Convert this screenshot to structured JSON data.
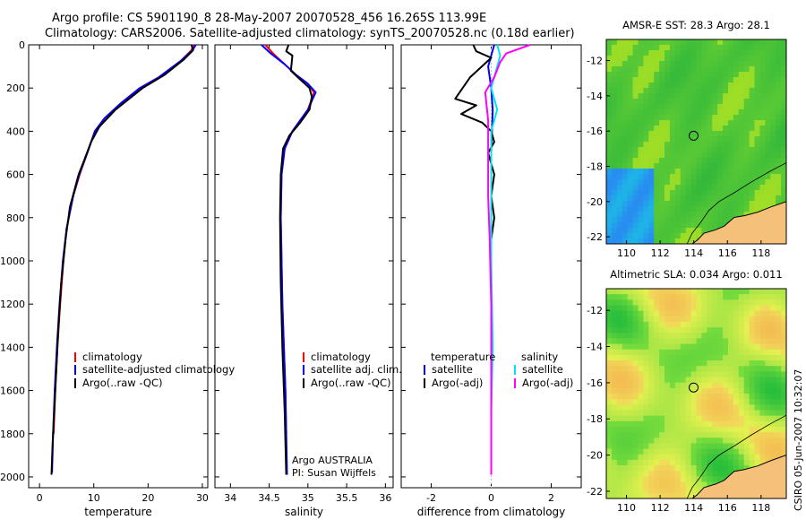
{
  "title": {
    "line1": "Argo profile: CS 5901190_8 28-May-2007 20070528_456 16.265S 113.99E",
    "line2": "Climatology: CARS2006. Satellite-adjusted climatology: synTS_20070528.nc (0.18d earlier)"
  },
  "colors": {
    "climatology": "#ff0000",
    "satellite": "#0000ff",
    "argo": "#000000",
    "temp_diff": "#000000",
    "sal_sat": "#00e5ee",
    "sal_argo": "#ff00ff",
    "land": "#f5c07a"
  },
  "chart_data": [
    {
      "type": "line",
      "xlabel": "temperature",
      "ylabel": "",
      "xlim": [
        -2,
        31
      ],
      "ylim": [
        2050,
        0
      ],
      "xticks": [
        "0",
        "10",
        "20",
        "30"
      ],
      "xtick_values": [
        0,
        10,
        20,
        30
      ],
      "yticks": [
        "0",
        "200",
        "400",
        "600",
        "800",
        "1000",
        "1200",
        "1400",
        "1600",
        "1800",
        "2000"
      ],
      "ytick_values": [
        0,
        200,
        400,
        600,
        800,
        1000,
        1200,
        1400,
        1600,
        1800,
        2000
      ],
      "legend_labels": [
        "climatology",
        "satellite-adjusted climatology",
        "Argo(..raw -QC)"
      ],
      "series": [
        {
          "name": "climatology",
          "color": "climatology",
          "x": [
            28.4,
            28.0,
            26.0,
            22.0,
            18.5,
            15.0,
            12.0,
            10.2,
            8.8,
            7.4,
            6.2,
            5.0,
            4.4,
            3.8,
            3.3,
            2.9,
            2.6
          ],
          "y": [
            0,
            25,
            75,
            150,
            200,
            270,
            340,
            400,
            500,
            600,
            700,
            850,
            1000,
            1200,
            1400,
            1600,
            1800
          ]
        },
        {
          "name": "satellite-adjusted climatology",
          "color": "satellite",
          "x": [
            28.8,
            28.2,
            26.0,
            22.0,
            18.5,
            15.0,
            12.0,
            10.2,
            8.8,
            7.3,
            6.2,
            5.0,
            4.3,
            3.7,
            3.2,
            2.8,
            2.5,
            2.3
          ],
          "y": [
            0,
            25,
            75,
            150,
            200,
            270,
            340,
            400,
            500,
            600,
            700,
            850,
            1000,
            1200,
            1400,
            1600,
            1800,
            1980
          ]
        },
        {
          "name": "Argo(..raw -QC)",
          "color": "argo",
          "x": [
            28.0,
            28.3,
            26.5,
            23.0,
            19.0,
            16.0,
            14.0,
            11.0,
            9.5,
            8.3,
            7.2,
            5.6,
            4.8,
            4.0,
            3.5,
            3.1,
            2.8,
            2.6,
            2.4,
            2.2
          ],
          "y": [
            0,
            25,
            70,
            140,
            200,
            260,
            300,
            380,
            450,
            530,
            600,
            750,
            900,
            1100,
            1300,
            1500,
            1650,
            1750,
            1850,
            1990
          ]
        }
      ]
    },
    {
      "type": "line",
      "xlabel": "salinity",
      "xlim": [
        33.8,
        36.1
      ],
      "ylim": [
        2050,
        0
      ],
      "xticks": [
        "34",
        "34.5",
        "35",
        "35.5",
        "36"
      ],
      "xtick_values": [
        34,
        34.5,
        35,
        35.5,
        36
      ],
      "legend_labels": [
        "climatology",
        "satellite adj. clim.",
        "Argo(..raw -QC)"
      ],
      "annotation": [
        "Argo AUSTRALIA",
        "PI: Susan Wijffels"
      ],
      "series": [
        {
          "name": "climatology",
          "color": "climatology",
          "x": [
            34.45,
            34.55,
            34.7,
            34.85,
            35.0,
            35.08,
            35.0,
            34.8,
            34.7,
            34.66,
            34.65,
            34.66,
            34.67,
            34.69,
            34.71,
            34.72
          ],
          "y": [
            0,
            40,
            90,
            140,
            180,
            220,
            300,
            400,
            480,
            600,
            800,
            1000,
            1200,
            1400,
            1600,
            1800
          ]
        },
        {
          "name": "satellite adj. clim.",
          "color": "satellite",
          "x": [
            34.4,
            34.52,
            34.7,
            34.85,
            35.0,
            35.1,
            35.0,
            34.8,
            34.7,
            34.66,
            34.65,
            34.66,
            34.67,
            34.69,
            34.71,
            34.72,
            34.73
          ],
          "y": [
            0,
            40,
            90,
            140,
            180,
            220,
            300,
            400,
            480,
            600,
            800,
            1000,
            1200,
            1400,
            1600,
            1800,
            1990
          ]
        },
        {
          "name": "Argo(..raw -QC)",
          "color": "argo",
          "x": [
            34.75,
            34.72,
            34.8,
            34.78,
            34.9,
            35.02,
            35.05,
            35.02,
            34.9,
            34.76,
            34.68,
            34.65,
            34.64,
            34.65,
            34.67,
            34.7,
            34.72
          ],
          "y": [
            0,
            30,
            50,
            120,
            160,
            200,
            240,
            300,
            360,
            420,
            480,
            600,
            800,
            1100,
            1400,
            1700,
            1990
          ]
        }
      ]
    },
    {
      "type": "line",
      "xlabel": "difference from climatology",
      "xlim": [
        -3.0,
        3.0
      ],
      "ylim": [
        2050,
        0
      ],
      "xticks": [
        "-2",
        "0",
        "2"
      ],
      "xtick_values": [
        -2,
        0,
        2
      ],
      "legend_labels": [
        "temperature",
        "satellite",
        "Argo(-adj)",
        "salinity",
        "satellite",
        "Argo(-adj)"
      ],
      "series": [
        {
          "name": "temperature satellite",
          "color": "satellite",
          "x": [
            0.1,
            0.0,
            -0.1,
            0.0,
            0.05,
            0.0,
            0.0,
            0.0,
            0.0
          ],
          "y": [
            0,
            50,
            100,
            200,
            300,
            500,
            800,
            1200,
            1990
          ]
        },
        {
          "name": "temperature Argo(-adj)",
          "color": "temp_diff",
          "x": [
            -0.6,
            -0.5,
            0.0,
            -0.7,
            -1.2,
            -0.5,
            -1.0,
            -0.3,
            0.0,
            0.1,
            -0.1,
            0.1,
            0.0,
            0.1,
            0.0,
            0.0,
            0.0,
            0.0,
            0.0
          ],
          "y": [
            0,
            30,
            60,
            150,
            250,
            280,
            320,
            360,
            400,
            450,
            500,
            600,
            700,
            800,
            900,
            1000,
            1400,
            1700,
            1990
          ]
        },
        {
          "name": "salinity satellite",
          "color": "sal_sat",
          "x": [
            0.2,
            0.3,
            0.2,
            0.1,
            0.0,
            0.2,
            0.0,
            0.0,
            0.0,
            0.05,
            0.0,
            0.0
          ],
          "y": [
            0,
            50,
            100,
            150,
            200,
            300,
            400,
            600,
            1000,
            1400,
            1700,
            1990
          ]
        },
        {
          "name": "salinity Argo(-adj)",
          "color": "sal_argo",
          "x": [
            1.3,
            0.5,
            0.3,
            0.1,
            -0.2,
            -0.1,
            -0.1,
            -0.1,
            -0.05,
            0.0,
            0.0,
            0.0
          ],
          "y": [
            0,
            40,
            80,
            150,
            220,
            350,
            500,
            700,
            900,
            1200,
            1500,
            1990
          ]
        }
      ]
    }
  ],
  "map_panels": [
    {
      "title": "AMSR-E SST: 28.3 Argo: 28.1",
      "xticks": [
        "110",
        "112",
        "114",
        "116",
        "118"
      ],
      "xtick_values": [
        110,
        112,
        114,
        116,
        118
      ],
      "yticks": [
        "-12",
        "-14",
        "-16",
        "-18",
        "-20",
        "-22"
      ],
      "ytick_values": [
        -12,
        -14,
        -16,
        -18,
        -20,
        -22
      ],
      "xlim": [
        108.8,
        119.5
      ],
      "ylim": [
        -22.4,
        -10.8
      ],
      "marker": {
        "lon": 113.99,
        "lat": -16.265
      }
    },
    {
      "title": "Altimetric SLA: 0.034 Argo: 0.011",
      "xticks": [
        "110",
        "112",
        "114",
        "116",
        "118"
      ],
      "xtick_values": [
        110,
        112,
        114,
        116,
        118
      ],
      "yticks": [
        "-12",
        "-14",
        "-16",
        "-18",
        "-20",
        "-22"
      ],
      "ytick_values": [
        -12,
        -14,
        -16,
        -18,
        -20,
        -22
      ],
      "xlim": [
        108.8,
        119.5
      ],
      "ylim": [
        -22.4,
        -10.8
      ],
      "marker": {
        "lon": 113.99,
        "lat": -16.265
      }
    }
  ],
  "credit": "CSIRO 05-Jun-2007 10:32:07"
}
